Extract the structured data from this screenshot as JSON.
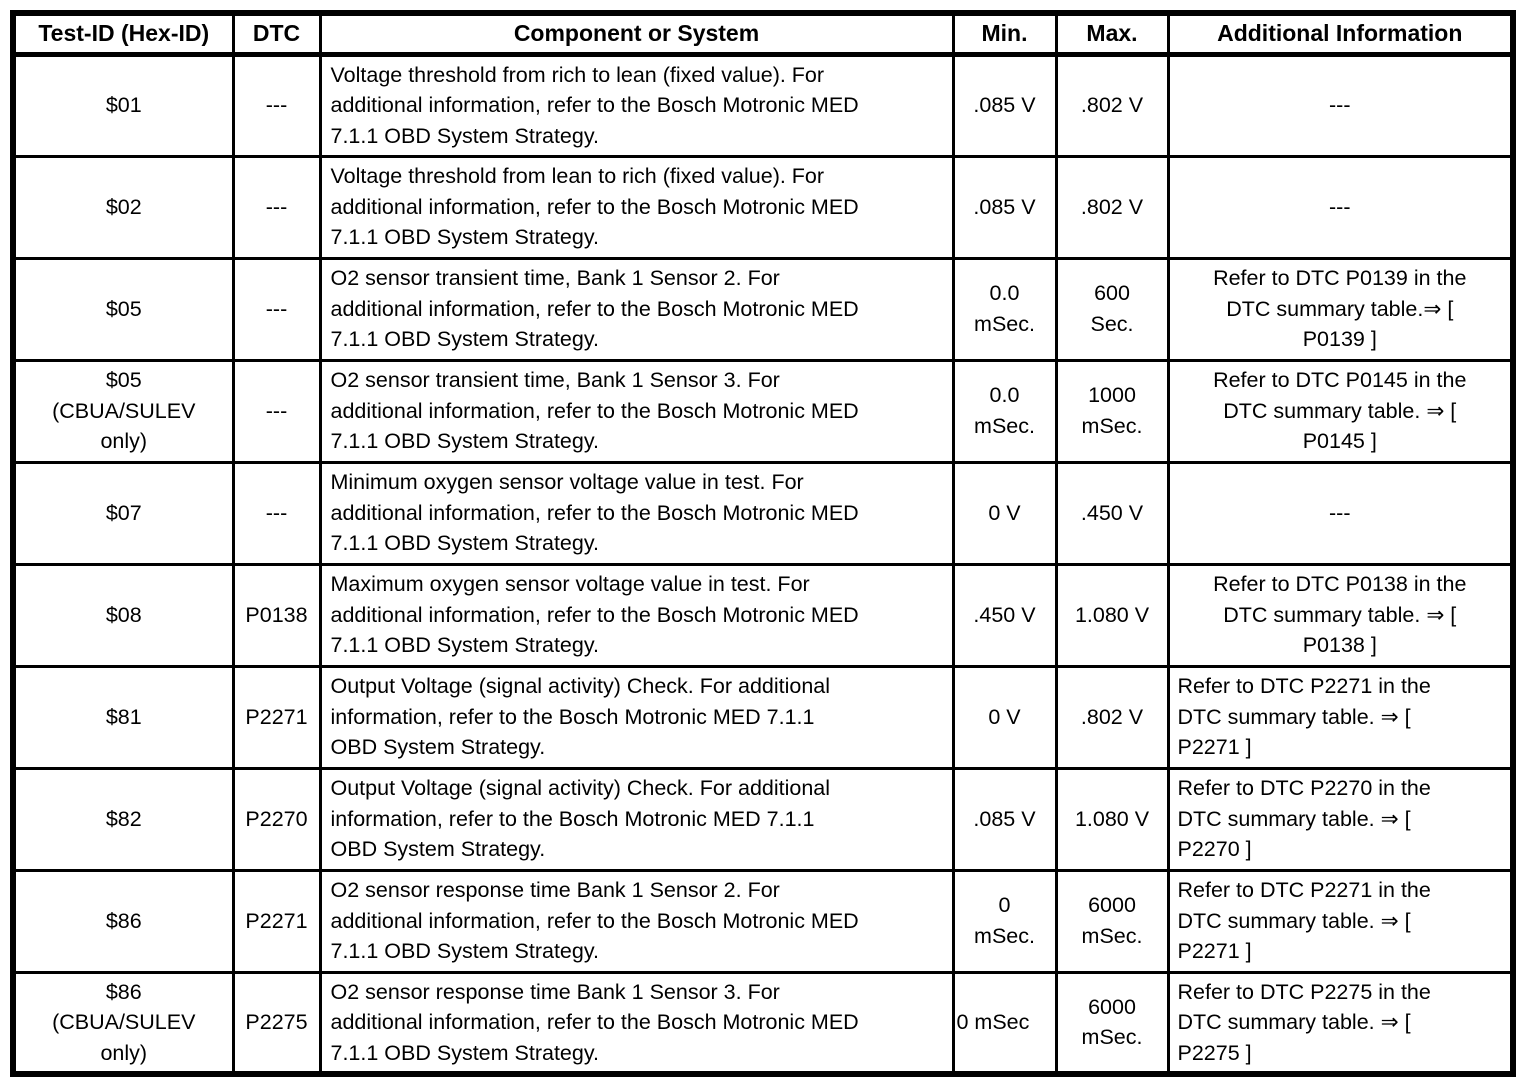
{
  "table": {
    "headers": [
      "Test-ID (Hex-ID)",
      "DTC",
      "Component or System",
      "Min.",
      "Max.",
      "Additional Information"
    ],
    "rows": [
      {
        "test_id": "$01",
        "dtc": "---",
        "component": "Voltage threshold from rich to lean (fixed value). For\nadditional information, refer to the Bosch Motronic MED\n7.1.1 OBD System Strategy.",
        "min": ".085 V",
        "max": ".802 V",
        "info": "---",
        "info_align": "center",
        "min_align": "center"
      },
      {
        "test_id": "$02",
        "dtc": "---",
        "component": "Voltage threshold from lean to rich (fixed value). For\nadditional information, refer to the Bosch Motronic MED\n7.1.1 OBD System Strategy.",
        "min": ".085 V",
        "max": ".802 V",
        "info": "---",
        "info_align": "center",
        "min_align": "center"
      },
      {
        "test_id": "$05",
        "dtc": "---",
        "component": "O2 sensor transient time, Bank 1 Sensor 2. For\nadditional information, refer to the Bosch Motronic MED\n7.1.1 OBD System Strategy.",
        "min": "0.0\nmSec.",
        "max": "600\nSec.",
        "info": "Refer to DTC P0139 in the\nDTC summary table.⇒ [\nP0139 ]",
        "info_align": "center",
        "min_align": "center"
      },
      {
        "test_id": "$05\n(CBUA/SULEV\nonly)",
        "dtc": "---",
        "component": "O2 sensor transient time, Bank 1 Sensor 3. For\nadditional information, refer to the Bosch Motronic MED\n7.1.1 OBD System Strategy.",
        "min": "0.0\nmSec.",
        "max": "1000\nmSec.",
        "info": "Refer to DTC P0145 in the\nDTC summary table. ⇒ [\nP0145 ]",
        "info_align": "center",
        "min_align": "center"
      },
      {
        "test_id": "$07",
        "dtc": "---",
        "component": "Minimum oxygen sensor voltage value in test. For\nadditional information, refer to the Bosch Motronic MED\n7.1.1 OBD System Strategy.",
        "min": "0 V",
        "max": ".450 V",
        "info": "---",
        "info_align": "center",
        "min_align": "center"
      },
      {
        "test_id": "$08",
        "dtc": "P0138",
        "component": "Maximum oxygen sensor voltage value in test. For\nadditional information, refer to the Bosch Motronic MED\n7.1.1 OBD System Strategy.",
        "min": ".450 V",
        "max": "1.080 V",
        "info": "Refer to DTC P0138 in the\nDTC summary table. ⇒ [\nP0138 ]",
        "info_align": "center",
        "min_align": "center"
      },
      {
        "test_id": "$81",
        "dtc": "P2271",
        "component": "Output Voltage (signal activity) Check. For additional\ninformation, refer to the Bosch Motronic MED 7.1.1\nOBD System Strategy.",
        "min": "0 V",
        "max": ".802 V",
        "info": "Refer to DTC P2271 in the\nDTC summary table. ⇒ [\nP2271 ]",
        "info_align": "left",
        "min_align": "center"
      },
      {
        "test_id": "$82",
        "dtc": "P2270",
        "component": "Output Voltage (signal activity) Check. For additional\ninformation, refer to the Bosch Motronic MED 7.1.1\nOBD System Strategy.",
        "min": ".085 V",
        "max": "1.080 V",
        "info": "Refer to DTC P2270 in the\nDTC summary table. ⇒ [\nP2270 ]",
        "info_align": "left",
        "min_align": "center"
      },
      {
        "test_id": "$86",
        "dtc": "P2271",
        "component": "O2 sensor response time Bank 1 Sensor 2. For\nadditional information, refer to the Bosch Motronic MED\n7.1.1 OBD System Strategy.",
        "min": "0\nmSec.",
        "max": "6000\nmSec.",
        "info": "Refer to DTC P2271 in the\nDTC summary table. ⇒ [\nP2271 ]",
        "info_align": "left",
        "min_align": "center"
      },
      {
        "test_id": "$86\n(CBUA/SULEV\nonly)",
        "dtc": "P2275",
        "component": "O2 sensor response time Bank 1 Sensor 3. For\nadditional information, refer to the Bosch Motronic MED\n7.1.1 OBD System Strategy.",
        "min": "0 mSec",
        "max": "6000\nmSec.",
        "info": "Refer to DTC P2275 in the\nDTC summary table. ⇒ [\nP2275 ]",
        "info_align": "left",
        "min_align": "left"
      }
    ]
  }
}
